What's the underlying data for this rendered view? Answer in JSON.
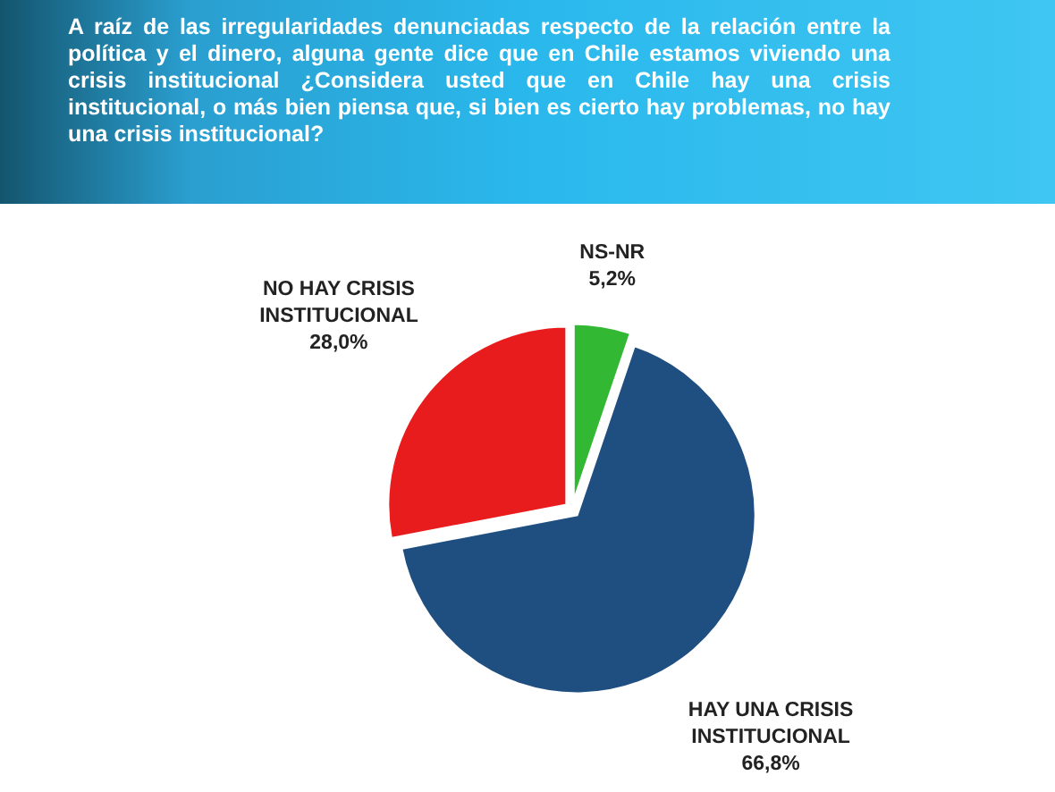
{
  "chart_data": {
    "type": "pie",
    "title": "A raíz de las irregularidades denunciadas respecto de la relación entre la política y el dinero, alguna gente dice que en Chile estamos viviendo una crisis institucional ¿Considera usted que en Chile hay una crisis institucional, o más bien piensa que, si bien es cierto hay problemas, no hay una crisis institucional?",
    "categories": [
      "NS-NR",
      "HAY UNA CRISIS INSTITUCIONAL",
      "NO HAY CRISIS INSTITUCIONAL"
    ],
    "values": [
      5.2,
      66.8,
      28.0
    ],
    "colors": [
      "#33b833",
      "#1f4f80",
      "#e81c1c"
    ],
    "value_labels": [
      "5,2%",
      "66,8%",
      "28,0%"
    ]
  }
}
